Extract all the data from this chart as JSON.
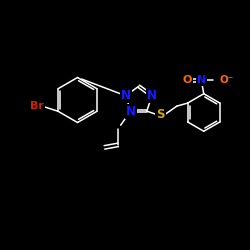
{
  "background_color": "#000000",
  "bond_color": "#ffffff",
  "atom_colors": {
    "N": "#1a1aff",
    "S": "#ccaa00",
    "Br": "#cc2200",
    "O": "#ff6600",
    "C": "#ffffff"
  },
  "font_size": 8.5
}
